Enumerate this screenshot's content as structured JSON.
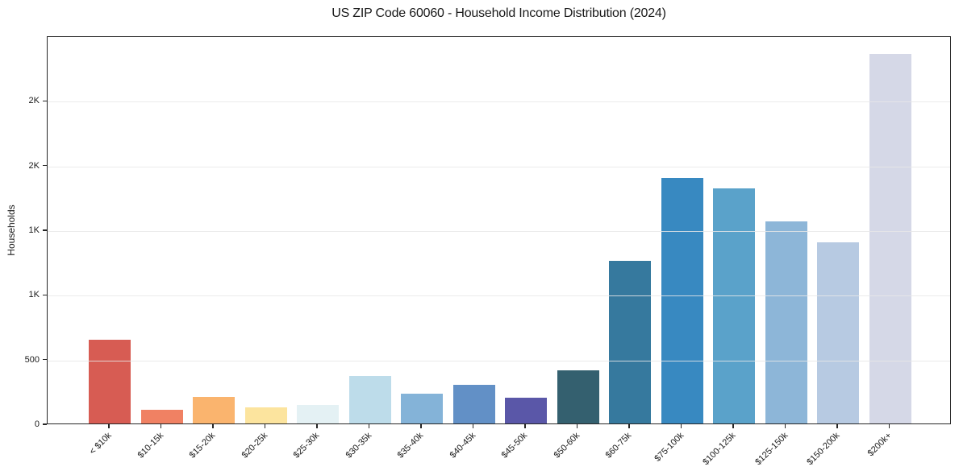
{
  "chart_data": {
    "type": "bar",
    "title": "US ZIP Code 60060 - Household Income Distribution (2024)",
    "xlabel": "",
    "ylabel": "Households",
    "categories": [
      "< $10k",
      "$10-15k",
      "$15-20k",
      "$20-25k",
      "$25-30k",
      "$30-35k",
      "$35-40k",
      "$40-45k",
      "$45-50k",
      "$50-60k",
      "$60-75k",
      "$75-100k",
      "$100-125k",
      "$125-150k",
      "$150-200k",
      "$200k+"
    ],
    "values": [
      645,
      105,
      205,
      125,
      145,
      365,
      230,
      300,
      200,
      410,
      1260,
      1900,
      1820,
      1560,
      1400,
      2860
    ],
    "bar_colors": [
      "#d75c53",
      "#f08163",
      "#fab46e",
      "#fce49e",
      "#e4f1f4",
      "#bddcea",
      "#84b3d8",
      "#6290c6",
      "#5a57a8",
      "#34606f",
      "#36799e",
      "#3889c1",
      "#5aa2ca",
      "#8db6d8",
      "#b7cae2",
      "#d5d8e7"
    ],
    "ylim": [
      0,
      3000
    ],
    "yticks": [
      {
        "value": 0,
        "label": "0"
      },
      {
        "value": 500,
        "label": "500"
      },
      {
        "value": 1000,
        "label": "1K"
      },
      {
        "value": 1500,
        "label": "1K"
      },
      {
        "value": 2000,
        "label": "2K"
      },
      {
        "value": 2500,
        "label": "2K"
      }
    ],
    "grid": "horizontal",
    "legend": "none"
  },
  "style": {
    "background": "#ffffff",
    "spine_color": "#262626",
    "grid_color": "#e7e7e7",
    "text_color": "#1a1a1a"
  }
}
